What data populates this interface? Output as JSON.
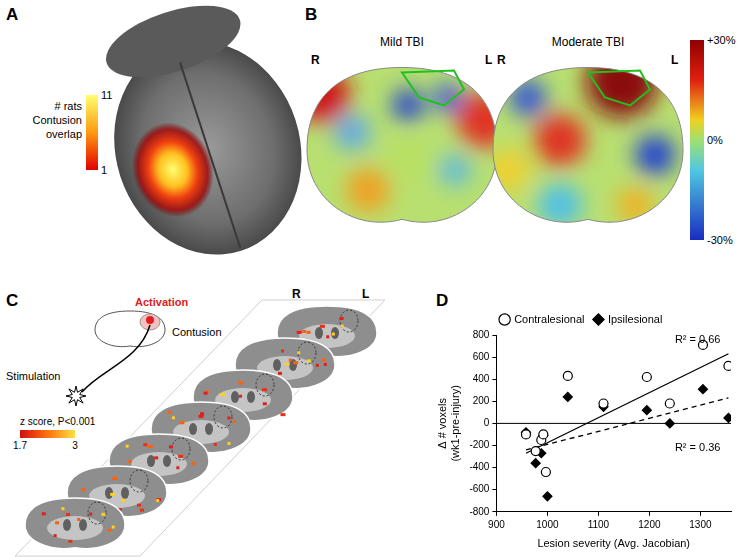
{
  "panels": [
    {
      "label": "A",
      "colorbar": {
        "title_lines": [
          "# rats",
          "Contusion",
          "overlap"
        ],
        "range": [
          1,
          11
        ],
        "ticks": [
          1,
          11
        ]
      }
    },
    {
      "label": "B",
      "sections": [
        {
          "title": "Mild TBI",
          "sides": [
            "R",
            "L"
          ]
        },
        {
          "title": "Moderate TBI",
          "sides": [
            "R",
            "L"
          ]
        }
      ],
      "colorbar": {
        "range": [
          -30,
          30
        ],
        "ticks": [
          {
            "value": 30,
            "label": "+30%"
          },
          {
            "value": 0,
            "label": "0%"
          },
          {
            "value": -30,
            "label": "-30%"
          }
        ]
      }
    },
    {
      "label": "C",
      "sides": [
        "R",
        "L"
      ],
      "inset_labels": {
        "activation": "Activation",
        "contusion": "Contusion",
        "stimulation": "Stimulation"
      },
      "colorbar": {
        "title": "z score, P<0.001",
        "range": [
          1.7,
          3
        ],
        "ticks": [
          1.7,
          3
        ]
      }
    },
    {
      "label": "D"
    }
  ],
  "chart_data": {
    "type": "scatter",
    "xlabel": "Lesion severity (Avg. Jacobian)",
    "ylabel": [
      "Δ # voxels",
      "(wk1-pre-injury)"
    ],
    "xlim": [
      900,
      1360
    ],
    "xticks": [
      900,
      1000,
      1100,
      1200,
      1300
    ],
    "ylim": [
      -800,
      800
    ],
    "yticks": [
      -800,
      -600,
      -400,
      -200,
      0,
      200,
      400,
      600,
      800
    ],
    "grid": false,
    "legend": "top",
    "series": [
      {
        "name": "Contralesional",
        "color": "#000000",
        "marker": "open_circle",
        "x": [
          958,
          977,
          988,
          992,
          997,
          1040,
          1110,
          1195,
          1240,
          1305,
          1355
        ],
        "values": [
          -100,
          -250,
          -150,
          -100,
          -440,
          430,
          180,
          420,
          180,
          710,
          520
        ]
      },
      {
        "name": "Ipsilesional",
        "color": "#000000",
        "marker": "diamond",
        "x": [
          958,
          977,
          988,
          992,
          1000,
          1040,
          1110,
          1195,
          1240,
          1305,
          1355
        ],
        "values": [
          -80,
          -360,
          -270,
          -110,
          -660,
          240,
          150,
          120,
          0,
          310,
          50
        ]
      }
    ],
    "trend_lines": [
      {
        "label": "R² = 0.66",
        "color": "#000000",
        "line_style": "solid",
        "x": [
          958,
          1355
        ],
        "values": [
          -270,
          630
        ]
      },
      {
        "label": "R² = 0.36",
        "color": "#000000",
        "line_style": "dashed",
        "x": [
          958,
          1355
        ],
        "values": [
          -240,
          230
        ]
      }
    ]
  }
}
